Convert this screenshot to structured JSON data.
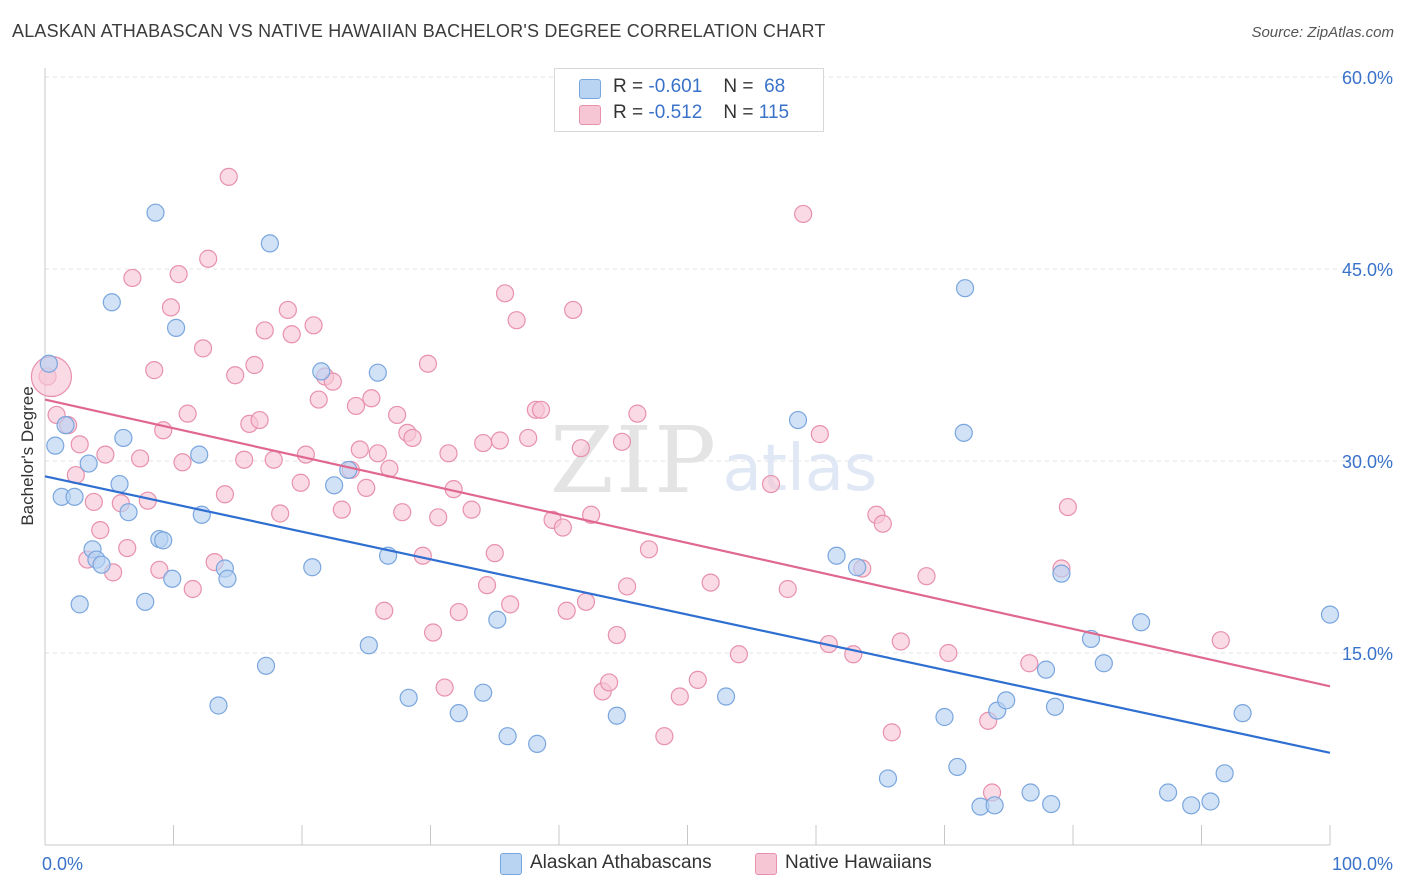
{
  "title": "ALASKAN ATHABASCAN VS NATIVE HAWAIIAN BACHELOR'S DEGREE CORRELATION CHART",
  "source": "Source: ZipAtlas.com",
  "watermark": {
    "zip": "ZIP",
    "atlas": "atlas"
  },
  "legend_stats": [
    {
      "r_label": "R =",
      "r_value": "-0.601",
      "n_label": "N =",
      "n_value": "68"
    },
    {
      "r_label": "R =",
      "r_value": "-0.512",
      "n_label": "N =",
      "n_value": "115"
    }
  ],
  "colors": {
    "blue_fill": "#b9d3f3",
    "blue_stroke": "#7aa6de",
    "blue_line": "#2f6fd1",
    "pink_fill": "#f7c6d5",
    "pink_stroke": "#e891ad",
    "pink_line": "#e0688f",
    "tick_text": "#3a72c9",
    "grid": "#e3e3e3"
  },
  "chart_data": {
    "type": "scatter",
    "title": "ALASKAN ATHABASCAN VS NATIVE HAWAIIAN BACHELOR'S DEGREE CORRELATION CHART",
    "xlabel": "",
    "ylabel": "Bachelor's Degree",
    "xlim": [
      0,
      100
    ],
    "ylim": [
      0,
      60
    ],
    "x_tick_labels": [
      "0.0%",
      "100.0%"
    ],
    "y_ticks": [
      15,
      30,
      45,
      60
    ],
    "y_tick_labels": [
      "15.0%",
      "30.0%",
      "45.0%",
      "60.0%"
    ],
    "grid": true,
    "legend_placement": "bottom",
    "series": [
      {
        "name": "Alaskan Athabascans",
        "r": -0.601,
        "n": 68,
        "trend": {
          "x": [
            0,
            100
          ],
          "y": [
            28.8,
            7.2
          ]
        },
        "points": [
          [
            0.3,
            37.6
          ],
          [
            0.8,
            31.2
          ],
          [
            1.3,
            27.2
          ],
          [
            1.6,
            32.8
          ],
          [
            2.3,
            27.2
          ],
          [
            2.7,
            18.8
          ],
          [
            3.4,
            29.8
          ],
          [
            3.7,
            23.1
          ],
          [
            4.0,
            22.3
          ],
          [
            4.4,
            21.9
          ],
          [
            5.2,
            42.4
          ],
          [
            5.8,
            28.2
          ],
          [
            6.1,
            31.8
          ],
          [
            6.5,
            26.0
          ],
          [
            7.8,
            19.0
          ],
          [
            8.6,
            49.4
          ],
          [
            8.9,
            23.9
          ],
          [
            9.2,
            23.8
          ],
          [
            9.9,
            20.8
          ],
          [
            10.2,
            40.4
          ],
          [
            12.0,
            30.5
          ],
          [
            12.2,
            25.8
          ],
          [
            13.5,
            10.9
          ],
          [
            14.0,
            21.6
          ],
          [
            14.2,
            20.8
          ],
          [
            17.5,
            47.0
          ],
          [
            17.2,
            14.0
          ],
          [
            20.8,
            21.7
          ],
          [
            21.5,
            37.0
          ],
          [
            22.5,
            28.1
          ],
          [
            23.6,
            29.3
          ],
          [
            25.2,
            15.6
          ],
          [
            25.9,
            36.9
          ],
          [
            26.7,
            22.6
          ],
          [
            28.3,
            11.5
          ],
          [
            32.2,
            10.3
          ],
          [
            34.1,
            11.9
          ],
          [
            35.2,
            17.6
          ],
          [
            36.0,
            8.5
          ],
          [
            38.3,
            7.9
          ],
          [
            44.5,
            10.1
          ],
          [
            53.0,
            11.6
          ],
          [
            58.6,
            33.2
          ],
          [
            61.6,
            22.6
          ],
          [
            63.2,
            21.7
          ],
          [
            65.6,
            5.2
          ],
          [
            70.0,
            10.0
          ],
          [
            71.0,
            6.1
          ],
          [
            71.5,
            32.2
          ],
          [
            71.6,
            43.5
          ],
          [
            72.8,
            3.0
          ],
          [
            73.9,
            3.1
          ],
          [
            74.1,
            10.5
          ],
          [
            74.8,
            11.3
          ],
          [
            76.7,
            4.1
          ],
          [
            77.9,
            13.7
          ],
          [
            78.3,
            3.2
          ],
          [
            78.6,
            10.8
          ],
          [
            79.1,
            21.2
          ],
          [
            81.4,
            16.1
          ],
          [
            82.4,
            14.2
          ],
          [
            85.3,
            17.4
          ],
          [
            87.4,
            4.1
          ],
          [
            89.2,
            3.1
          ],
          [
            90.7,
            3.4
          ],
          [
            91.8,
            5.6
          ],
          [
            93.2,
            10.3
          ],
          [
            100.0,
            18.0
          ]
        ]
      },
      {
        "name": "Native Hawaiians",
        "r": -0.512,
        "n": 115,
        "trend": {
          "x": [
            0,
            100
          ],
          "y": [
            34.8,
            12.4
          ]
        },
        "points": [
          [
            0.2,
            36.6
          ],
          [
            0.9,
            33.6
          ],
          [
            1.8,
            32.8
          ],
          [
            2.4,
            28.9
          ],
          [
            2.7,
            31.3
          ],
          [
            3.3,
            22.3
          ],
          [
            3.8,
            26.8
          ],
          [
            4.3,
            24.6
          ],
          [
            4.7,
            30.5
          ],
          [
            5.3,
            21.3
          ],
          [
            5.9,
            26.7
          ],
          [
            6.4,
            23.2
          ],
          [
            6.8,
            44.3
          ],
          [
            7.4,
            30.2
          ],
          [
            8.0,
            26.9
          ],
          [
            8.5,
            37.1
          ],
          [
            8.9,
            21.5
          ],
          [
            9.2,
            32.4
          ],
          [
            9.8,
            42.0
          ],
          [
            10.4,
            44.6
          ],
          [
            10.7,
            29.9
          ],
          [
            11.1,
            33.7
          ],
          [
            11.5,
            20.0
          ],
          [
            12.3,
            38.8
          ],
          [
            12.7,
            45.8
          ],
          [
            13.2,
            22.1
          ],
          [
            14.0,
            27.4
          ],
          [
            14.3,
            52.2
          ],
          [
            14.8,
            36.7
          ],
          [
            15.5,
            30.1
          ],
          [
            15.9,
            32.9
          ],
          [
            16.3,
            37.5
          ],
          [
            16.7,
            33.2
          ],
          [
            17.1,
            40.2
          ],
          [
            17.8,
            30.1
          ],
          [
            18.3,
            25.9
          ],
          [
            18.9,
            41.8
          ],
          [
            19.2,
            39.9
          ],
          [
            19.9,
            28.3
          ],
          [
            20.3,
            30.5
          ],
          [
            20.9,
            40.6
          ],
          [
            21.3,
            34.8
          ],
          [
            21.8,
            36.6
          ],
          [
            22.4,
            36.2
          ],
          [
            23.1,
            26.2
          ],
          [
            23.8,
            29.3
          ],
          [
            24.2,
            34.3
          ],
          [
            24.5,
            30.9
          ],
          [
            25.0,
            27.9
          ],
          [
            25.4,
            34.9
          ],
          [
            25.9,
            30.6
          ],
          [
            26.4,
            18.3
          ],
          [
            26.8,
            29.4
          ],
          [
            27.4,
            33.6
          ],
          [
            27.8,
            26.0
          ],
          [
            28.2,
            32.2
          ],
          [
            28.6,
            31.8
          ],
          [
            29.4,
            22.6
          ],
          [
            29.8,
            37.6
          ],
          [
            30.2,
            16.6
          ],
          [
            30.6,
            25.6
          ],
          [
            31.1,
            12.3
          ],
          [
            31.4,
            30.6
          ],
          [
            31.8,
            27.8
          ],
          [
            32.2,
            18.2
          ],
          [
            33.2,
            26.2
          ],
          [
            34.1,
            31.4
          ],
          [
            34.4,
            20.3
          ],
          [
            35.0,
            22.8
          ],
          [
            35.4,
            31.6
          ],
          [
            35.8,
            43.1
          ],
          [
            36.2,
            18.8
          ],
          [
            36.7,
            41.0
          ],
          [
            37.6,
            31.8
          ],
          [
            38.2,
            34.0
          ],
          [
            38.6,
            34.0
          ],
          [
            39.5,
            25.4
          ],
          [
            40.3,
            24.8
          ],
          [
            40.6,
            18.3
          ],
          [
            41.1,
            41.8
          ],
          [
            41.7,
            31.0
          ],
          [
            42.1,
            19.0
          ],
          [
            42.5,
            25.8
          ],
          [
            43.4,
            12.0
          ],
          [
            43.9,
            12.7
          ],
          [
            44.5,
            16.4
          ],
          [
            44.9,
            31.5
          ],
          [
            45.3,
            20.2
          ],
          [
            46.1,
            33.7
          ],
          [
            47.0,
            23.1
          ],
          [
            48.2,
            8.5
          ],
          [
            49.4,
            11.6
          ],
          [
            50.8,
            12.9
          ],
          [
            51.8,
            20.5
          ],
          [
            54.0,
            14.9
          ],
          [
            56.5,
            28.2
          ],
          [
            57.8,
            20.0
          ],
          [
            59.0,
            49.3
          ],
          [
            60.3,
            32.1
          ],
          [
            61.0,
            15.7
          ],
          [
            62.9,
            14.9
          ],
          [
            63.6,
            21.6
          ],
          [
            64.7,
            25.8
          ],
          [
            65.2,
            25.1
          ],
          [
            65.9,
            8.8
          ],
          [
            66.6,
            15.9
          ],
          [
            68.6,
            21.0
          ],
          [
            70.3,
            15.0
          ],
          [
            73.4,
            9.7
          ],
          [
            73.7,
            4.1
          ],
          [
            76.6,
            14.2
          ],
          [
            79.1,
            21.6
          ],
          [
            79.6,
            26.4
          ],
          [
            91.5,
            16.0
          ],
          [
            0.5,
            36.6
          ]
        ]
      }
    ]
  }
}
